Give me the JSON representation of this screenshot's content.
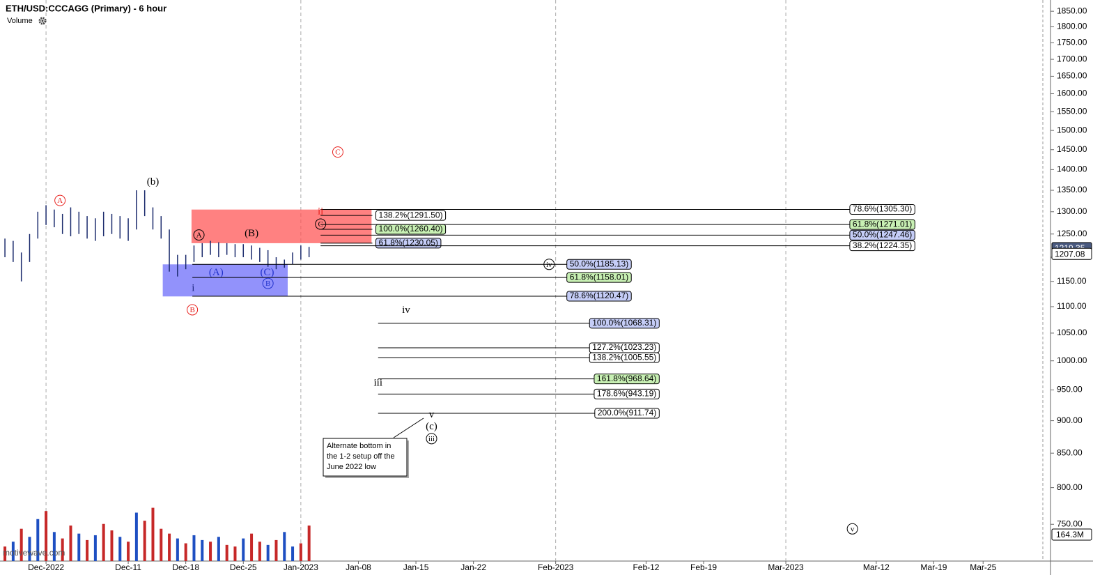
{
  "chart_data": {
    "type": "ohlc",
    "title": "ETH/USD:CCCAGG (Primary) - 6 hour",
    "indicator": "Volume",
    "watermark": "motivewave.com",
    "log_scale": true,
    "xlim": [
      -5.6,
      122.2
    ],
    "xticks": [
      {
        "value": 0,
        "label": "Dec-2022"
      },
      {
        "value": 10,
        "label": "Dec-11"
      },
      {
        "value": 17,
        "label": "Dec-18"
      },
      {
        "value": 24,
        "label": "Dec-25"
      },
      {
        "value": 31,
        "label": "Jan-2023"
      },
      {
        "value": 38,
        "label": "Jan-08"
      },
      {
        "value": 45,
        "label": "Jan-15"
      },
      {
        "value": 52,
        "label": "Jan-22"
      },
      {
        "value": 62,
        "label": "Feb-2023"
      },
      {
        "value": 73,
        "label": "Feb-12"
      },
      {
        "value": 80,
        "label": "Feb-19"
      },
      {
        "value": 90,
        "label": "Mar-2023"
      },
      {
        "value": 101,
        "label": "Mar-12"
      },
      {
        "value": 108,
        "label": "Mar-19"
      },
      {
        "value": 114,
        "label": "Mar-25"
      }
    ],
    "ylim": [
      703,
      1887
    ],
    "yticks": [
      {
        "value": 750,
        "label": "750.00"
      },
      {
        "value": 800,
        "label": "800.00"
      },
      {
        "value": 850,
        "label": "850.00"
      },
      {
        "value": 900,
        "label": "900.00"
      },
      {
        "value": 950,
        "label": "950.00"
      },
      {
        "value": 1000,
        "label": "1000.00"
      },
      {
        "value": 1050,
        "label": "1050.00"
      },
      {
        "value": 1100,
        "label": "1100.00"
      },
      {
        "value": 1150,
        "label": "1150.00"
      },
      {
        "value": 1200,
        "label": "1200.00"
      },
      {
        "value": 1250,
        "label": "1250.00"
      },
      {
        "value": 1300,
        "label": "1300.00"
      },
      {
        "value": 1350,
        "label": "1350.00"
      },
      {
        "value": 1400,
        "label": "1400.00"
      },
      {
        "value": 1450,
        "label": "1450.00"
      },
      {
        "value": 1500,
        "label": "1500.00"
      },
      {
        "value": 1550,
        "label": "1550.00"
      },
      {
        "value": 1600,
        "label": "1600.00"
      },
      {
        "value": 1650,
        "label": "1650.00"
      },
      {
        "value": 1700,
        "label": "1700.00"
      },
      {
        "value": 1750,
        "label": "1750.00"
      },
      {
        "value": 1800,
        "label": "1800.00"
      },
      {
        "value": 1850,
        "label": "1850.00"
      }
    ],
    "bar_color": "#1a2a6c",
    "bars": {
      "x": [
        -5,
        -4,
        -3,
        -2,
        -1,
        0,
        1,
        2,
        3,
        4,
        5,
        6,
        7,
        8,
        9,
        10,
        11,
        12,
        13,
        14,
        15,
        16,
        17,
        18,
        19,
        20,
        21,
        22,
        23,
        24,
        25,
        26,
        27,
        28,
        29,
        30,
        31,
        32
      ],
      "low": [
        1200,
        1190,
        1150,
        1190,
        1240,
        1270,
        1265,
        1250,
        1245,
        1250,
        1240,
        1235,
        1245,
        1250,
        1240,
        1235,
        1260,
        1290,
        1260,
        1240,
        1170,
        1160,
        1175,
        1190,
        1200,
        1205,
        1200,
        1205,
        1200,
        1200,
        1195,
        1190,
        1180,
        1175,
        1178,
        1185,
        1195,
        1200
      ],
      "high": [
        1240,
        1235,
        1210,
        1250,
        1300,
        1315,
        1305,
        1295,
        1310,
        1300,
        1290,
        1285,
        1300,
        1295,
        1290,
        1285,
        1350,
        1350,
        1310,
        1290,
        1260,
        1205,
        1205,
        1225,
        1230,
        1235,
        1232,
        1230,
        1228,
        1228,
        1225,
        1220,
        1215,
        1200,
        1195,
        1210,
        1225,
        1222
      ]
    },
    "volume": {
      "ylim": [
        0,
        367
      ],
      "values": [
        90,
        120,
        200,
        150,
        260,
        310,
        180,
        140,
        220,
        170,
        130,
        160,
        230,
        190,
        150,
        120,
        300,
        250,
        330,
        200,
        170,
        140,
        110,
        160,
        130,
        120,
        150,
        100,
        90,
        140,
        170,
        120,
        100,
        130,
        180,
        90,
        110,
        220
      ],
      "colors": [
        "#c62828",
        "#1e4fc2",
        "#c62828",
        "#1e4fc2",
        "#1e4fc2",
        "#c62828",
        "#1e4fc2",
        "#c62828",
        "#c62828",
        "#1e4fc2",
        "#c62828",
        "#1e4fc2",
        "#c62828",
        "#c62828",
        "#1e4fc2",
        "#c62828",
        "#1e4fc2",
        "#c62828",
        "#c62828",
        "#c62828",
        "#c62828",
        "#1e4fc2",
        "#c62828",
        "#1e4fc2",
        "#1e4fc2",
        "#c62828",
        "#1e4fc2",
        "#c62828",
        "#c62828",
        "#1e4fc2",
        "#c62828",
        "#c62828",
        "#1e4fc2",
        "#c62828",
        "#1e4fc2",
        "#1e4fc2",
        "#c62828",
        "#c62828"
      ],
      "tag": {
        "value": 164.3,
        "label": "164.3M"
      }
    },
    "last_price": 1207.08,
    "prior_price": 1219.35,
    "zones": [
      {
        "x": [
          17.7,
          39.6
        ],
        "y": [
          1230,
          1305
        ],
        "color": "rgba(255,80,80,0.72)"
      },
      {
        "x": [
          14.2,
          29.4
        ],
        "y": [
          1120,
          1185
        ],
        "color": "rgba(100,100,250,0.7)"
      }
    ],
    "levels": [
      {
        "label": "138.2%(1291.50)",
        "value": 1291.5,
        "x": [
          33.4,
          39.7
        ],
        "fill": "#ffffff",
        "label_pos": "after"
      },
      {
        "label": "100.0%(1260.40)",
        "value": 1260.4,
        "x": [
          33.4,
          39.7
        ],
        "fill": "#c8f0b4",
        "label_pos": "after"
      },
      {
        "label": "61.8%(1230.05)",
        "value": 1230.05,
        "x": [
          33.4,
          39.7
        ],
        "fill": "#c5cdf7",
        "label_pos": "after"
      },
      {
        "label": "78.6%(1305.30)",
        "value": 1305.3,
        "x": [
          33.4,
          105.7
        ],
        "fill": "#ffffff",
        "label_pos": "end"
      },
      {
        "label": "61.8%(1271.01)",
        "value": 1271.01,
        "x": [
          33.4,
          105.7
        ],
        "fill": "#c8f0b4",
        "label_pos": "end"
      },
      {
        "label": "50.0%(1247.46)",
        "value": 1247.46,
        "x": [
          33.4,
          105.7
        ],
        "fill": "#c5cdf7",
        "label_pos": "end"
      },
      {
        "label": "38.2%(1224.35)",
        "value": 1224.35,
        "x": [
          33.4,
          105.7
        ],
        "fill": "#ffffff",
        "label_pos": "end"
      },
      {
        "label": "50.0%(1185.13)",
        "value": 1185.13,
        "x": [
          17.8,
          71.2
        ],
        "fill": "#c5cdf7",
        "label_pos": "end"
      },
      {
        "label": "61.8%(1158.01)",
        "value": 1158.01,
        "x": [
          17.8,
          71.2
        ],
        "fill": "#c8f0b4",
        "label_pos": "end"
      },
      {
        "label": "78.6%(1120.47)",
        "value": 1120.47,
        "x": [
          17.8,
          71.2
        ],
        "fill": "#c5cdf7",
        "label_pos": "end"
      },
      {
        "label": "100.0%(1068.31)",
        "value": 1068.31,
        "x": [
          40.4,
          74.6
        ],
        "fill": "#c5cdf7",
        "label_pos": "end"
      },
      {
        "label": "127.2%(1023.23)",
        "value": 1023.23,
        "x": [
          40.4,
          74.6
        ],
        "fill": "#ffffff",
        "label_pos": "end"
      },
      {
        "label": "138.2%(1005.55)",
        "value": 1005.55,
        "x": [
          40.4,
          74.6
        ],
        "fill": "#ffffff",
        "label_pos": "end"
      },
      {
        "label": "161.8%(968.64)",
        "value": 968.64,
        "x": [
          40.4,
          74.6
        ],
        "fill": "#c8f0b4",
        "label_pos": "end"
      },
      {
        "label": "178.6%(943.19)",
        "value": 943.19,
        "x": [
          40.4,
          74.6
        ],
        "fill": "#ffffff",
        "label_pos": "end"
      },
      {
        "label": "200.0%(911.74)",
        "value": 911.74,
        "x": [
          40.4,
          74.6
        ],
        "fill": "#ffffff",
        "label_pos": "end"
      }
    ],
    "waves": [
      {
        "text": "A",
        "x": 1.7,
        "y": 1326,
        "color": "#e8201c",
        "circled": true
      },
      {
        "text": "(b)",
        "x": 13.0,
        "y": 1371,
        "color": "#000000",
        "circled": false
      },
      {
        "text": "B",
        "x": 17.8,
        "y": 1094,
        "color": "#e8201c",
        "circled": true
      },
      {
        "text": "i",
        "x": 17.9,
        "y": 1137,
        "color": "#1a237e",
        "circled": false
      },
      {
        "text": "A",
        "x": 18.6,
        "y": 1248,
        "color": "#000000",
        "circled": true
      },
      {
        "text": "(A)",
        "x": 20.7,
        "y": 1169,
        "color": "#2233cc",
        "circled": false
      },
      {
        "text": "(B)",
        "x": 25.0,
        "y": 1252,
        "color": "#000000",
        "circled": false
      },
      {
        "text": "(C)",
        "x": 26.9,
        "y": 1169,
        "color": "#2233cc",
        "circled": false
      },
      {
        "text": "B",
        "x": 27.0,
        "y": 1146,
        "color": "#2233cc",
        "circled": true
      },
      {
        "text": "C",
        "x": 35.5,
        "y": 1444,
        "color": "#e8201c",
        "circled": true
      },
      {
        "text": "ii",
        "x": 33.4,
        "y": 1301,
        "color": "#e8201c",
        "circled": false
      },
      {
        "text": "C",
        "x": 33.4,
        "y": 1272,
        "color": "#000000",
        "circled": true
      },
      {
        "text": "iv",
        "x": 61.2,
        "y": 1185,
        "color": "#000000",
        "circled": true
      },
      {
        "text": "iv",
        "x": 43.8,
        "y": 1094,
        "color": "#000000",
        "circled": false
      },
      {
        "text": "iii",
        "x": 40.4,
        "y": 962,
        "color": "#000000",
        "circled": false
      },
      {
        "text": "v",
        "x": 46.9,
        "y": 910,
        "color": "#000000",
        "circled": false
      },
      {
        "text": "(c)",
        "x": 46.9,
        "y": 891,
        "color": "#000000",
        "circled": false
      },
      {
        "text": "iii",
        "x": 46.9,
        "y": 872,
        "color": "#000000",
        "circled": true
      },
      {
        "text": "v",
        "x": 98.1,
        "y": 744,
        "color": "#000000",
        "circled": true
      }
    ],
    "note": {
      "lines": [
        "Alternate bottom in",
        "the 1-2 setup off the",
        "June 2022 low"
      ]
    }
  }
}
